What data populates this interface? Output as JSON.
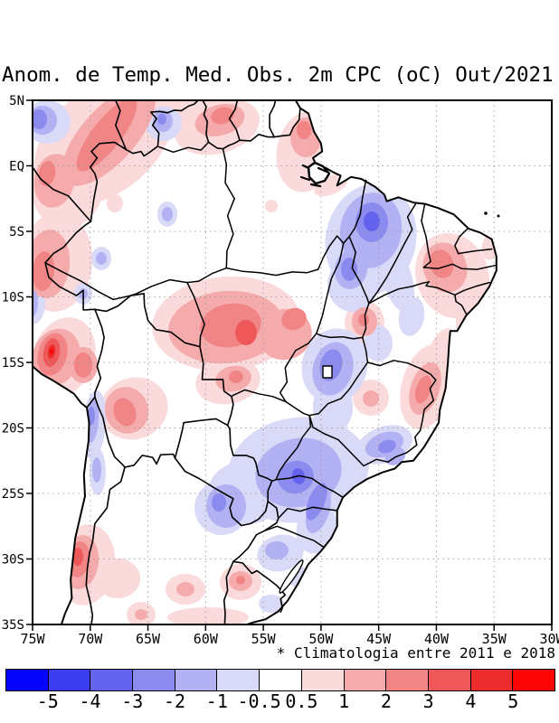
{
  "title": "Anom. de Temp. Med. Obs. 2m CPC (oC) Out/2021",
  "footnote": "* Climatologia entre 2011 e 2018",
  "map": {
    "lat_labels": [
      "5N",
      "EQ",
      "5S",
      "10S",
      "15S",
      "20S",
      "25S",
      "30S",
      "35S"
    ],
    "lat_values": [
      5,
      0,
      -5,
      -10,
      -15,
      -20,
      -25,
      -30,
      -35
    ],
    "lon_labels": [
      "75W",
      "70W",
      "65W",
      "60W",
      "55W",
      "50W",
      "45W",
      "40W",
      "35W",
      "30W"
    ],
    "lon_values": [
      -75,
      -70,
      -65,
      -60,
      -55,
      -50,
      -45,
      -40,
      -35,
      -30
    ],
    "grid_style": "dotted",
    "grid_color": "#999999",
    "border_color": "#000000",
    "ocean_color": "#ffffff"
  },
  "colorbar": {
    "tick_labels": [
      "-5",
      "-4",
      "-3",
      "-2",
      "-1",
      "-0.5",
      "0.5",
      "1",
      "2",
      "3",
      "4",
      "5"
    ],
    "colors": [
      "#0505fc",
      "#3c3cf0",
      "#6363ee",
      "#8b8bef",
      "#b1b1f3",
      "#d9d9f8",
      "#ffffff",
      "#fadada",
      "#f5abab",
      "#f18585",
      "#ee5858",
      "#ec2c2c",
      "#fc0505"
    ],
    "units": "oC"
  },
  "chart_data": {
    "type": "heatmap",
    "subtype": "filled-contour-anomaly-map",
    "title": "Anom. de Temp. Med. Obs. 2m CPC (oC) Out/2021",
    "variable": "Anomalia de temperatura media observada a 2m (CPC)",
    "units": "oC",
    "month": "Out/2021",
    "climatology_period": "2011 a 2018",
    "lon_domain": [
      "75W",
      "30W"
    ],
    "lat_domain": [
      "5N",
      "35S"
    ],
    "contour_levels": [
      -5,
      -4,
      -3,
      -2,
      -1,
      -0.5,
      0.5,
      1,
      2,
      3,
      4,
      5
    ],
    "legend_position": "bottom",
    "grid": true,
    "anomaly_features": [
      {
        "sign": "warm",
        "location": "southern Peru (~73.5W, 14S)",
        "peak_band": "+4 to +5"
      },
      {
        "sign": "warm",
        "location": "Bolivian Altiplano (~67W, 18.5S)",
        "peak_band": "+2 to +3"
      },
      {
        "sign": "warm",
        "location": "Rondonia / northern Mato Grosso (~56W, 12.5S)",
        "peak_band": "+3 to +4"
      },
      {
        "sign": "warm",
        "location": "northern band along 5N: S Colombia / Venezuela",
        "peak_band": "+2 to +3"
      },
      {
        "sign": "warm",
        "location": "Guyana / Roraima (~59W, 4N)",
        "peak_band": "+2 to +3"
      },
      {
        "sign": "warm",
        "location": "Amapa / Amazon mouth (~52W, 2N)",
        "peak_band": "+2 to +3"
      },
      {
        "sign": "warm",
        "location": "coastal Pernambuco / Paraiba (~39W, 7.5S)",
        "peak_band": "+2 to +3"
      },
      {
        "sign": "warm",
        "location": "eastern Bahia / NE Minas Gerais (~41W, 17S)",
        "peak_band": "+2 to +3"
      },
      {
        "sign": "warm",
        "location": "central Chile Andes (~70.5W, 30S)",
        "peak_band": "+3 to +4"
      },
      {
        "sign": "warm",
        "location": "NW Uruguay (~56.5W, 32S)",
        "peak_band": "+2 to +3"
      },
      {
        "sign": "warm",
        "location": "southern Maranhao / Tocantins (~46W, 12S)",
        "peak_band": "+2 to +3"
      },
      {
        "sign": "cool",
        "location": "eastern Para / western Maranhao (~45.5W, 3S-8S)",
        "peak_band": "-3 to -4"
      },
      {
        "sign": "cool",
        "location": "Goias / Distrito Federal (~48.5W, 15.5S)",
        "peak_band": "-2 to -3"
      },
      {
        "sign": "cool",
        "location": "Sao Paulo / Parana / Mato Grosso do Sul (~52W, 23S)",
        "peak_band": "-2 to -3"
      },
      {
        "sign": "cool",
        "location": "Paraguay / NE Argentina (~59W, 26S)",
        "peak_band": "-2 to -3"
      },
      {
        "sign": "cool",
        "location": "Minas Gerais / Rio de Janeiro border (~44W, 21.5S)",
        "peak_band": "-2 to -3"
      },
      {
        "sign": "cool",
        "location": "NW corner, SE Colombia (~73.5W, 3.5N)",
        "peak_band": "-2 to -3"
      },
      {
        "sign": "cool",
        "location": "Chile / Bolivia Andes strip (~70W, 19S-23S)",
        "peak_band": "-1 to -2"
      }
    ]
  }
}
